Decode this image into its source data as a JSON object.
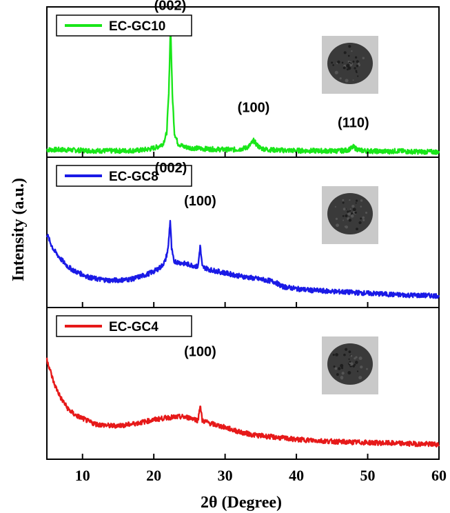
{
  "chart_data": {
    "type": "line",
    "xlabel": "2θ (Degree)",
    "ylabel": "Intensity (a.u.)",
    "xlim": [
      5,
      60
    ],
    "xticks": [
      10,
      20,
      30,
      40,
      50,
      60
    ],
    "panels": [
      {
        "name": "EC-GC10",
        "color": "#19e619",
        "ylim": [
          0,
          100
        ],
        "points": [
          [
            5,
            5
          ],
          [
            7,
            5
          ],
          [
            10,
            4.5
          ],
          [
            12,
            4.3
          ],
          [
            14,
            4.2
          ],
          [
            16,
            4.3
          ],
          [
            18,
            4.6
          ],
          [
            19.5,
            5.5
          ],
          [
            20.5,
            6.8
          ],
          [
            21.3,
            9
          ],
          [
            21.8,
            16
          ],
          [
            22.1,
            42
          ],
          [
            22.35,
            88
          ],
          [
            22.6,
            42
          ],
          [
            22.9,
            16
          ],
          [
            23.4,
            9
          ],
          [
            24.2,
            7
          ],
          [
            25,
            6.3
          ],
          [
            27,
            5.6
          ],
          [
            29,
            5.2
          ],
          [
            31,
            5
          ],
          [
            32,
            5.3
          ],
          [
            33,
            6.3
          ],
          [
            33.5,
            8
          ],
          [
            34,
            11
          ],
          [
            34.5,
            8
          ],
          [
            35,
            6
          ],
          [
            36,
            5
          ],
          [
            38,
            4.6
          ],
          [
            40,
            4.4
          ],
          [
            42,
            4.3
          ],
          [
            44,
            4.2
          ],
          [
            46,
            4.2
          ],
          [
            47,
            4.6
          ],
          [
            47.6,
            5.6
          ],
          [
            48,
            6.8
          ],
          [
            48.4,
            5.6
          ],
          [
            49,
            4.5
          ],
          [
            51,
            4
          ],
          [
            53,
            3.8
          ],
          [
            54,
            4.2
          ],
          [
            56,
            3.7
          ],
          [
            58,
            3.6
          ],
          [
            60,
            3.5
          ]
        ],
        "peaks": [
          {
            "label": "(002)",
            "x": 22.3,
            "y": 98
          },
          {
            "label": "(100)",
            "x": 34.0,
            "y": 30
          },
          {
            "label": "(110)",
            "x": 48.0,
            "y": 20
          }
        ]
      },
      {
        "name": "EC-GC8",
        "color": "#1a1ae6",
        "ylim": [
          0,
          100
        ],
        "points": [
          [
            5,
            49
          ],
          [
            5.5,
            43
          ],
          [
            6,
            38
          ],
          [
            7,
            32
          ],
          [
            8,
            27
          ],
          [
            9,
            24
          ],
          [
            10,
            22
          ],
          [
            11,
            20
          ],
          [
            12,
            19
          ],
          [
            14,
            18
          ],
          [
            16,
            18.5
          ],
          [
            17,
            19
          ],
          [
            18,
            20.5
          ],
          [
            19,
            22
          ],
          [
            20,
            24
          ],
          [
            21,
            27
          ],
          [
            21.6,
            31
          ],
          [
            22,
            39
          ],
          [
            22.3,
            58
          ],
          [
            22.5,
            39
          ],
          [
            22.8,
            31
          ],
          [
            23.5,
            30
          ],
          [
            24.5,
            29
          ],
          [
            25.5,
            28
          ],
          [
            26.2,
            27
          ],
          [
            26.5,
            41
          ],
          [
            26.8,
            27
          ],
          [
            28,
            25
          ],
          [
            30,
            23
          ],
          [
            32,
            21
          ],
          [
            34,
            19.5
          ],
          [
            36,
            18
          ],
          [
            37,
            17
          ],
          [
            38,
            14
          ],
          [
            40,
            12.5
          ],
          [
            42,
            11.5
          ],
          [
            44,
            11
          ],
          [
            46,
            10.5
          ],
          [
            48,
            10
          ],
          [
            50,
            9.5
          ],
          [
            52,
            9
          ],
          [
            54,
            8.5
          ],
          [
            56,
            8.2
          ],
          [
            58,
            8
          ],
          [
            60,
            7.8
          ]
        ],
        "peaks": [
          {
            "label": "(002)",
            "x": 22.4,
            "y": 90
          },
          {
            "label": "(100)",
            "x": 26.5,
            "y": 68
          }
        ]
      },
      {
        "name": "EC-GC4",
        "color": "#e61919",
        "ylim": [
          0,
          100
        ],
        "points": [
          [
            5,
            66
          ],
          [
            5.5,
            58
          ],
          [
            6,
            50
          ],
          [
            7,
            40
          ],
          [
            8,
            33
          ],
          [
            9,
            29
          ],
          [
            10,
            27
          ],
          [
            11,
            24.5
          ],
          [
            12,
            23
          ],
          [
            14,
            22
          ],
          [
            16,
            22.5
          ],
          [
            18,
            24
          ],
          [
            20,
            26
          ],
          [
            22,
            27.5
          ],
          [
            24,
            28
          ],
          [
            25.5,
            27
          ],
          [
            26.2,
            25.5
          ],
          [
            26.5,
            36
          ],
          [
            26.8,
            25.5
          ],
          [
            28,
            23.5
          ],
          [
            30,
            21
          ],
          [
            32,
            18
          ],
          [
            34,
            16
          ],
          [
            36,
            15
          ],
          [
            38,
            14
          ],
          [
            40,
            13
          ],
          [
            42,
            12.5
          ],
          [
            44,
            12
          ],
          [
            46,
            11.5
          ],
          [
            48,
            11.2
          ],
          [
            50,
            11
          ],
          [
            52,
            10.7
          ],
          [
            54,
            10.5
          ],
          [
            56,
            10.2
          ],
          [
            58,
            10
          ],
          [
            60,
            9.8
          ]
        ],
        "peaks": [
          {
            "label": "(100)",
            "x": 26.5,
            "y": 68
          }
        ]
      }
    ]
  },
  "colors": {
    "frame": "#000000",
    "inset_bg": "#c9c9c9",
    "inset_sample": "#3a3a3a"
  }
}
